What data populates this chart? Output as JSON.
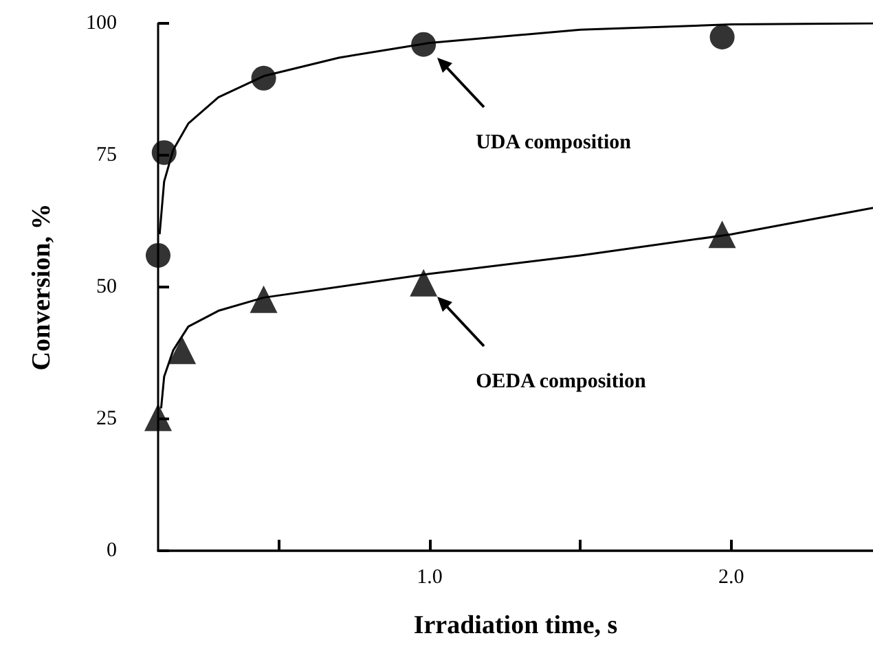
{
  "chart_data": {
    "type": "scatter",
    "xlabel": "Irradiation time, s",
    "ylabel": "Conversion, %",
    "xlim": [
      0.1,
      2.47
    ],
    "xticks": [
      {
        "value": 0.5,
        "label": null
      },
      {
        "value": 1,
        "label": "1.0"
      },
      {
        "value": 1.5,
        "label": null
      },
      {
        "value": 2,
        "label": "2.0"
      }
    ],
    "ylim": [
      0,
      100
    ],
    "yticks": [
      0,
      25,
      50,
      75,
      100
    ],
    "grid": false,
    "series": [
      {
        "name": null,
        "color": "#000000",
        "marker": "circle",
        "x": [
          0.1,
          0.12,
          0.45,
          0.98,
          1.97
        ],
        "values": [
          56,
          75.5,
          89.6,
          96,
          97.4
        ]
      },
      {
        "name": null,
        "color": "#000000",
        "marker": "triangle",
        "x": [
          0.1,
          0.18,
          0.45,
          0.98,
          1.97
        ],
        "values": [
          25.3,
          38,
          47.7,
          50.8,
          60
        ]
      },
      {
        "type": "line",
        "color": "#000000",
        "marker": "none",
        "x": [
          0.105,
          0.12,
          0.15,
          0.2,
          0.3,
          0.45,
          0.7,
          1.0,
          1.5,
          2.0,
          2.47
        ],
        "values": [
          60,
          70,
          76,
          81,
          86,
          90,
          93.5,
          96.3,
          98.8,
          99.8,
          100
        ]
      },
      {
        "type": "line",
        "color": "#000000",
        "marker": "none",
        "x": [
          0.11,
          0.12,
          0.15,
          0.2,
          0.3,
          0.45,
          1.0,
          1.5,
          2.0,
          2.47
        ],
        "values": [
          27,
          33,
          38,
          42.5,
          45.5,
          48,
          52.5,
          56,
          60,
          65
        ]
      }
    ],
    "annotations": [
      "UDA composition",
      "OEDA composition"
    ]
  }
}
